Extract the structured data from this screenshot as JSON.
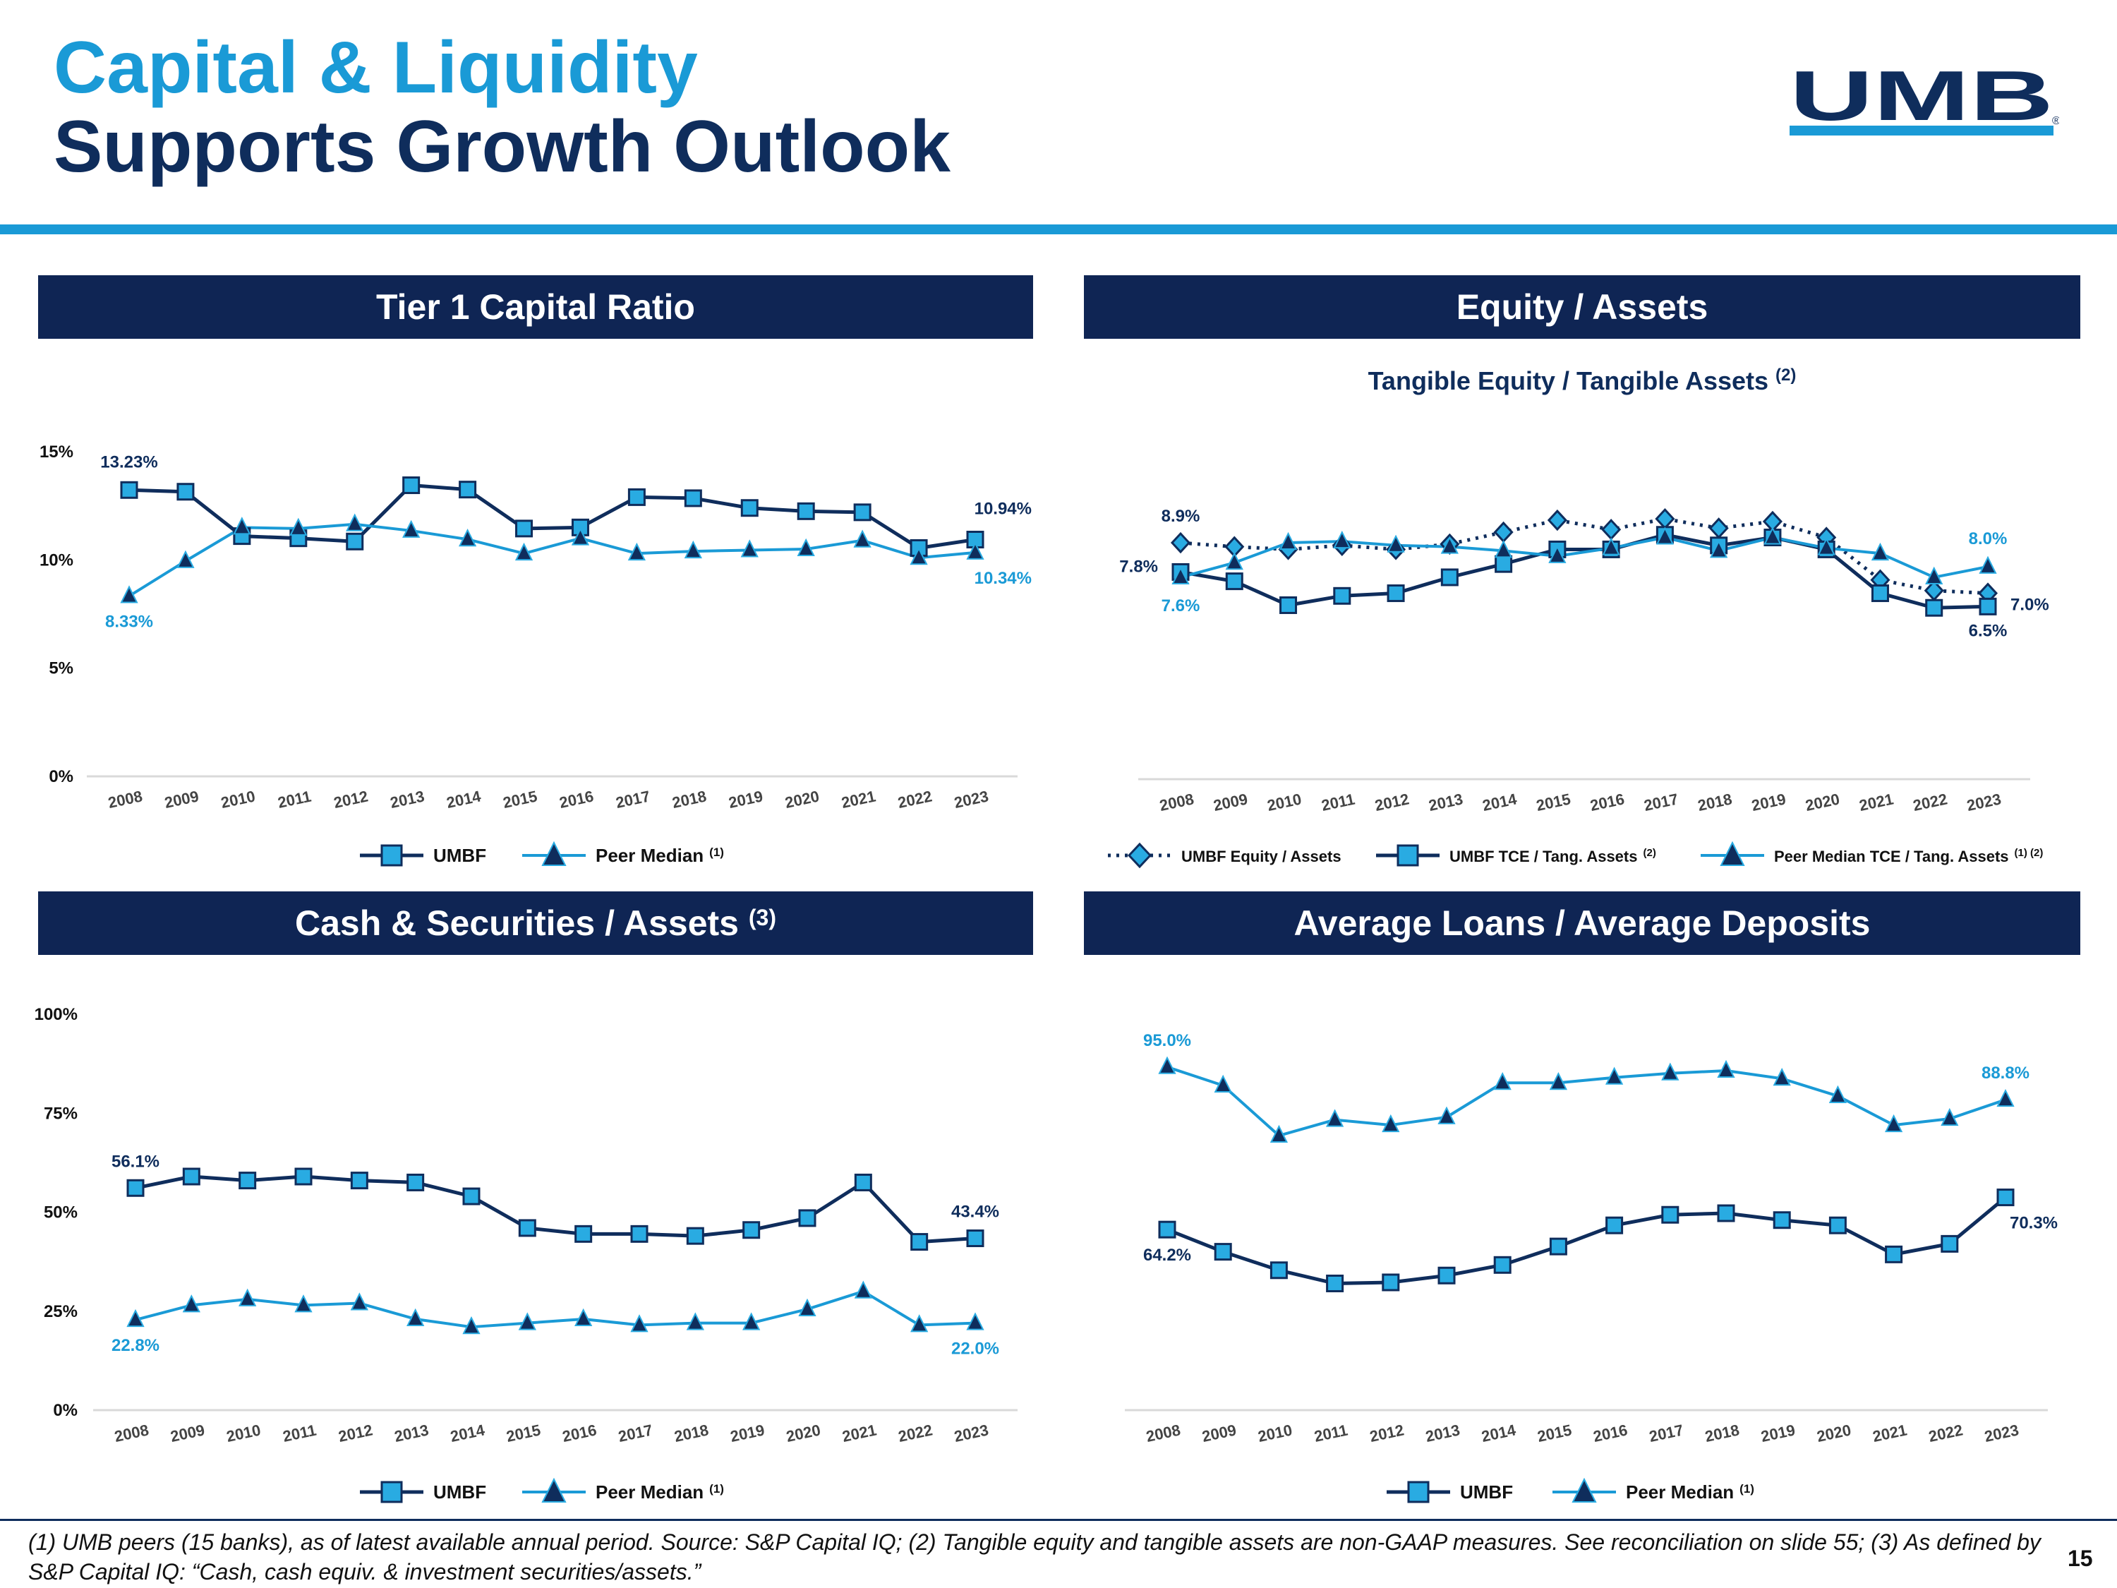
{
  "header": {
    "title_line1": "Capital & Liquidity",
    "title_line2": "Supports Growth Outlook",
    "logo_text": "UMB"
  },
  "panels": {
    "p1_title": "Tier 1 Capital Ratio",
    "p2_title": "Equity / Assets",
    "p2_subtitle": "Tangible Equity / Tangible Assets",
    "p2_subtitle_sup": "(2)",
    "p3_title": "Cash & Securities / Assets",
    "p3_title_sup": "(3)",
    "p4_title": "Average Loans / Average Deposits"
  },
  "colors": {
    "navy": "#0f2d5c",
    "light": "#1a9ad6",
    "header_bg": "#0f2554",
    "fill": "#29abe2"
  },
  "chart_data": [
    {
      "type": "line",
      "title": "Tier 1 Capital Ratio",
      "categories": [
        "2008",
        "2009",
        "2010",
        "2011",
        "2012",
        "2013",
        "2014",
        "2015",
        "2016",
        "2017",
        "2018",
        "2019",
        "2020",
        "2021",
        "2022",
        "2023"
      ],
      "ylim": [
        0,
        15
      ],
      "yticks": [
        0,
        5,
        10,
        15
      ],
      "ytick_labels": [
        "0%",
        "5%",
        "10%",
        "15%"
      ],
      "series": [
        {
          "name": "UMBF",
          "sup": "",
          "marker": "square",
          "style": "navy",
          "values": [
            13.23,
            13.15,
            11.1,
            11.0,
            10.85,
            13.45,
            13.25,
            11.45,
            11.5,
            12.9,
            12.85,
            12.4,
            12.25,
            12.2,
            10.55,
            10.94
          ]
        },
        {
          "name": "Peer Median",
          "sup": "(1)",
          "marker": "triangle",
          "style": "light",
          "values": [
            8.33,
            9.95,
            11.5,
            11.45,
            11.65,
            11.35,
            10.95,
            10.3,
            11.0,
            10.3,
            10.4,
            10.45,
            10.5,
            10.9,
            10.1,
            10.34
          ]
        }
      ],
      "annotations": [
        {
          "text": "13.23%",
          "series": 0,
          "index": 0
        },
        {
          "text": "8.33%",
          "series": 1,
          "index": 0
        },
        {
          "text": "10.94%",
          "series": 0,
          "index": 15
        },
        {
          "text": "10.34%",
          "series": 1,
          "index": 15
        }
      ]
    },
    {
      "type": "line",
      "title": "Tangible Equity / Tangible Assets",
      "categories": [
        "2008",
        "2009",
        "2010",
        "2011",
        "2012",
        "2013",
        "2014",
        "2015",
        "2016",
        "2017",
        "2018",
        "2019",
        "2020",
        "2021",
        "2022",
        "2023"
      ],
      "ylim": [
        0,
        11
      ],
      "yticks": [],
      "ytick_labels": [],
      "series": [
        {
          "name": "UMBF Equity / Assets",
          "sup": "",
          "marker": "diamond",
          "style": "dotted",
          "values": [
            8.9,
            8.75,
            8.65,
            8.8,
            8.65,
            8.85,
            9.3,
            9.75,
            9.4,
            9.8,
            9.45,
            9.7,
            9.1,
            7.5,
            7.1,
            7.0
          ]
        },
        {
          "name": "UMBF TCE / Tang. Assets",
          "sup": "(2)",
          "marker": "square",
          "style": "navy",
          "values": [
            7.8,
            7.45,
            6.55,
            6.9,
            7.0,
            7.6,
            8.1,
            8.65,
            8.65,
            9.2,
            8.8,
            9.1,
            8.65,
            7.0,
            6.45,
            6.5
          ]
        },
        {
          "name": "Peer Median TCE / Tang. Assets",
          "sup": "(1) (2)",
          "marker": "triangle",
          "style": "light",
          "values": [
            7.6,
            8.15,
            8.9,
            8.95,
            8.8,
            8.75,
            8.6,
            8.4,
            8.7,
            9.1,
            8.6,
            9.1,
            8.7,
            8.5,
            7.6,
            8.0
          ]
        }
      ],
      "annotations": [
        {
          "text": "8.9%",
          "series": 0,
          "index": 0
        },
        {
          "text": "7.8%",
          "series": 1,
          "index": 0
        },
        {
          "text": "7.6%",
          "series": 2,
          "index": 0
        },
        {
          "text": "8.0%",
          "series": 2,
          "index": 15
        },
        {
          "text": "7.0%",
          "series": 0,
          "index": 15
        },
        {
          "text": "6.5%",
          "series": 1,
          "index": 15
        }
      ]
    },
    {
      "type": "line",
      "title": "Cash & Securities / Assets",
      "categories": [
        "2008",
        "2009",
        "2010",
        "2011",
        "2012",
        "2013",
        "2014",
        "2015",
        "2016",
        "2017",
        "2018",
        "2019",
        "2020",
        "2021",
        "2022",
        "2023"
      ],
      "ylim": [
        0,
        100
      ],
      "yticks": [
        0,
        25,
        50,
        75,
        100
      ],
      "ytick_labels": [
        "0%",
        "25%",
        "50%",
        "75%",
        "100%"
      ],
      "series": [
        {
          "name": "UMBF",
          "sup": "",
          "marker": "square",
          "style": "navy",
          "values": [
            56.1,
            59.0,
            58.0,
            59.0,
            58.0,
            57.5,
            54.0,
            46.0,
            44.5,
            44.5,
            44.0,
            45.5,
            48.5,
            57.5,
            42.5,
            43.4
          ]
        },
        {
          "name": "Peer Median",
          "sup": "(1)",
          "marker": "triangle",
          "style": "light",
          "values": [
            22.8,
            26.5,
            28.0,
            26.5,
            27.0,
            23.0,
            21.0,
            22.0,
            23.0,
            21.5,
            22.0,
            22.0,
            25.5,
            30.0,
            21.5,
            22.0
          ]
        }
      ],
      "annotations": [
        {
          "text": "56.1%",
          "series": 0,
          "index": 0
        },
        {
          "text": "22.8%",
          "series": 1,
          "index": 0
        },
        {
          "text": "43.4%",
          "series": 0,
          "index": 15
        },
        {
          "text": "22.0%",
          "series": 1,
          "index": 15
        }
      ]
    },
    {
      "type": "line",
      "title": "Average Loans / Average Deposits",
      "categories": [
        "2008",
        "2009",
        "2010",
        "2011",
        "2012",
        "2013",
        "2014",
        "2015",
        "2016",
        "2017",
        "2018",
        "2019",
        "2020",
        "2021",
        "2022",
        "2023"
      ],
      "ylim": [
        30,
        105
      ],
      "yticks": [],
      "ytick_labels": [],
      "series": [
        {
          "name": "UMBF",
          "sup": "",
          "marker": "square",
          "style": "navy",
          "values": [
            64.2,
            60.0,
            56.5,
            54.0,
            54.2,
            55.5,
            57.5,
            61.0,
            65.0,
            67.0,
            67.3,
            66.0,
            65.0,
            59.5,
            61.5,
            70.3
          ]
        },
        {
          "name": "Peer Median",
          "sup": "(1)",
          "marker": "triangle",
          "style": "light",
          "values": [
            95.0,
            91.5,
            82.0,
            85.0,
            84.0,
            85.5,
            92.0,
            92.0,
            93.0,
            93.8,
            94.3,
            92.8,
            89.5,
            84.0,
            85.2,
            88.8
          ]
        }
      ],
      "annotations": [
        {
          "text": "95.0%",
          "series": 1,
          "index": 0
        },
        {
          "text": "64.2%",
          "series": 0,
          "index": 0
        },
        {
          "text": "88.8%",
          "series": 1,
          "index": 15
        },
        {
          "text": "70.3%",
          "series": 0,
          "index": 15
        }
      ]
    }
  ],
  "footnote": "(1) UMB peers (15 banks), as of latest available annual period. Source: S&P Capital IQ; (2) Tangible equity and tangible assets are non-GAAP measures. See reconciliation on slide 55; (3) As defined by S&P Capital IQ: “Cash, cash equiv. & investment securities/assets.”",
  "page_number": "15"
}
